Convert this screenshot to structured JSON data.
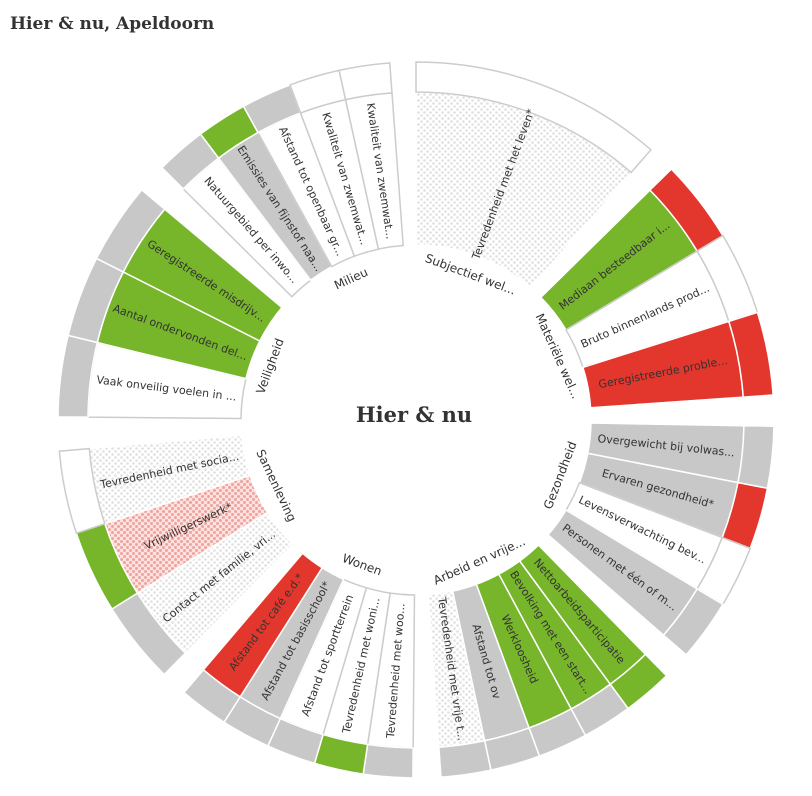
{
  "title": "Hier & nu, Apeldoorn",
  "center_label": "Hier & nu",
  "colors": {
    "green": "#77b52b",
    "red": "#e3372d",
    "gray": "#c8c8c8",
    "white": "#ffffff",
    "dotted": "#dedede",
    "dotted_red": "#f2a19c",
    "border": "#cccccc",
    "text": "#333333"
  },
  "themes": [
    {
      "name": "Subjectief wel...",
      "items": [
        {
          "label": "Tevredenheid met het leven*",
          "main": "dotted",
          "outer": "white"
        }
      ]
    },
    {
      "name": "Materiële wel...",
      "items": [
        {
          "label": "Mediaan besteedbaar i...",
          "main": "green",
          "outer": "red"
        },
        {
          "label": "Bruto binnenlands prod...",
          "main": "white",
          "outer": "white"
        },
        {
          "label": "Geregistreerde proble...",
          "main": "red",
          "outer": "red"
        }
      ]
    },
    {
      "name": "Gezondheid",
      "items": [
        {
          "label": "Overgewicht bij volwas...",
          "main": "gray",
          "outer": "gray"
        },
        {
          "label": "Ervaren gezondheid*",
          "main": "gray",
          "outer": "red"
        },
        {
          "label": "Levensverwachting bev...",
          "main": "white",
          "outer": "white"
        },
        {
          "label": "Personen met één of m...",
          "main": "gray",
          "outer": "gray"
        }
      ]
    },
    {
      "name": "Arbeid en vrije...",
      "items": [
        {
          "label": "Nettoarbeidsparticipatie",
          "main": "green",
          "outer": "green"
        },
        {
          "label": "Bevolking met een start...",
          "main": "green",
          "outer": "gray"
        },
        {
          "label": "Werkloosheid",
          "main": "green",
          "outer": "gray"
        },
        {
          "label": "Afstand tot ov",
          "main": "gray",
          "outer": "gray"
        },
        {
          "label": "Tevredenheid met vrije t...",
          "main": "dotted",
          "outer": "gray"
        }
      ]
    },
    {
      "name": "Wonen",
      "items": [
        {
          "label": "Tevredenheid met woo...",
          "main": "white",
          "outer": "gray"
        },
        {
          "label": "Tevredenheid met woni...",
          "main": "white",
          "outer": "green"
        },
        {
          "label": "Afstand tot sportterrein",
          "main": "white",
          "outer": "gray"
        },
        {
          "label": "Afstand tot basisschool*",
          "main": "gray",
          "outer": "gray"
        },
        {
          "label": "Afstand tot café e.d.*",
          "main": "red",
          "outer": "gray"
        }
      ]
    },
    {
      "name": "Samenleving",
      "items": [
        {
          "label": "Contact met familie, vri...",
          "main": "dotted",
          "outer": "gray"
        },
        {
          "label": "Vrijwilligerswerk*",
          "main": "dotted_red",
          "outer": "green"
        },
        {
          "label": "Tevredenheid met socia...",
          "main": "dotted",
          "outer": "white"
        }
      ]
    },
    {
      "name": "Veiligheid",
      "items": [
        {
          "label": "Vaak onveilig voelen in ...",
          "main": "white",
          "outer": "gray"
        },
        {
          "label": "Aantal ondervonden del...",
          "main": "green",
          "outer": "gray"
        },
        {
          "label": "Geregistreerde misdrijv...",
          "main": "green",
          "outer": "gray"
        }
      ]
    },
    {
      "name": "Milieu",
      "items": [
        {
          "label": "Natuurgebied per inwo...",
          "main": "white",
          "outer": "gray"
        },
        {
          "label": "Emissies van fijnstof naa...",
          "main": "gray",
          "outer": "green"
        },
        {
          "label": "Afstand tot openbaar gr...",
          "main": "white",
          "outer": "gray"
        },
        {
          "label": "Kwaliteit van zwemwat...",
          "main": "white",
          "outer": "white"
        },
        {
          "label": "Kwaliteit van zwemwat...",
          "main": "white",
          "outer": "white"
        }
      ]
    }
  ]
}
